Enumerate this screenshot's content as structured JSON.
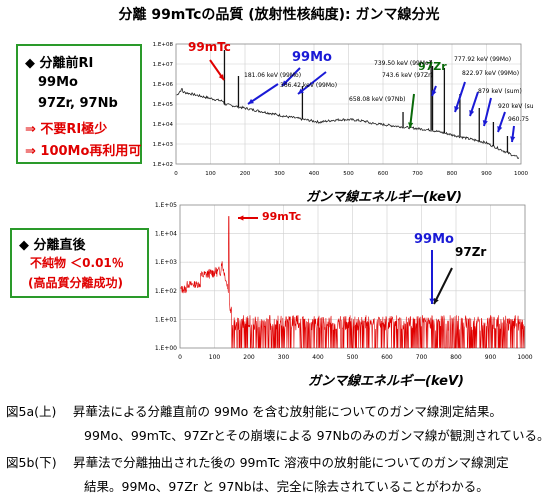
{
  "title": "分離 99mTcの品質 (放射性核純度): ガンマ線分光",
  "box_top": {
    "lines": [
      "◆ 分離前RI",
      "99Mo",
      "97Zr, 97Nb",
      "⇒ 不要RI極少",
      "⇒ 100Mo再利用可"
    ]
  },
  "box_bottom": {
    "lines": [
      "◆ 分離直後",
      "不純物 ＜0.01％",
      "(高品質分離成功)"
    ]
  },
  "chart_data": [
    {
      "type": "line",
      "title": "",
      "xlabel": "ガンマ線エネルギー(keV)",
      "ylabel": "",
      "xlim": [
        0,
        1000
      ],
      "x_ticks": [
        "0",
        "100",
        "200",
        "300",
        "400",
        "500",
        "600",
        "700",
        "800",
        "900",
        "1000"
      ],
      "y_ticks": [
        "1.E+02",
        "1.E+03",
        "1.E+04",
        "1.E+05",
        "1.E+06",
        "1.E+07",
        "1.E+08"
      ],
      "ylim_log10": [
        2,
        8
      ],
      "log_y": true,
      "peaks": [
        {
          "energy": 140.5,
          "label": "99mTc"
        },
        {
          "energy": 181.06,
          "label": "181.06 keV (99Mo)"
        },
        {
          "energy": 366.42,
          "label": "366.42 keV (99Mo)"
        },
        {
          "energy": 658.08,
          "label": "658.08 keV (97Nb)"
        },
        {
          "energy": 739.5,
          "label": "739.50 keV (99Mo)"
        },
        {
          "energy": 743.6,
          "label": "743.6 keV (97Zr)"
        },
        {
          "energy": 777.92,
          "label": "777.92 keV (99Mo)"
        },
        {
          "energy": 822.97,
          "label": "822.97 keV (99Mo)"
        },
        {
          "energy": 879,
          "label": "879 keV (sum)"
        },
        {
          "energy": 920,
          "label": "920 keV (sum)"
        },
        {
          "energy": 960.75,
          "label": "960.75"
        }
      ],
      "annotations": [
        "99mTc",
        "99Mo",
        "97Zr"
      ]
    },
    {
      "type": "line",
      "title": "",
      "xlabel": "ガンマ線エネルギー(keV)",
      "ylabel": "",
      "xlim": [
        0,
        1000
      ],
      "x_ticks": [
        "0",
        "100",
        "200",
        "300",
        "400",
        "500",
        "600",
        "700",
        "800",
        "900",
        "1000"
      ],
      "y_ticks": [
        "1.E+00",
        "1.E+01",
        "1.E+02",
        "1.E+03",
        "1.E+04",
        "1.E+05"
      ],
      "ylim_log10": [
        0,
        5
      ],
      "log_y": true,
      "peaks": [
        {
          "energy": 140.5,
          "label": "99mTc"
        }
      ],
      "annotations": [
        "99mTc",
        "99Mo",
        "97Zr"
      ]
    }
  ],
  "chart_labels": {
    "top": {
      "tc": "99mTc",
      "mo": "99Mo",
      "zr": "97Zr",
      "p181": "181.06 keV (99Mo)",
      "p366": "366.42 keV (99Mo)",
      "p658": "658.08 keV (97Nb)",
      "p739": "739.50 keV (99Mo)",
      "p743": "743.6 keV (97Zr)",
      "p777": "777.92 keV (99Mo)",
      "p822": "822.97 keV (99Mo)",
      "p879": "879 keV (sum)",
      "p920": "920 keV (su",
      "p960": "960.75"
    },
    "bottom": {
      "tc": "99mTc",
      "mo": "99Mo",
      "zr": "97Zr"
    }
  },
  "captions": [
    "図5a(上)　 昇華法による分離直前の 99Mo を含む放射能についてのガンマ線測定結果。",
    "99Mo、99mTc、97Zrとその崩壊による 97Nbのみのガンマ線が観測されている。",
    "図5b(下)　 昇華法で分離抽出された後の 99mTc 溶液中の放射能についてのガンマ線測定",
    "結果。99Mo、97Zr と 97Nbは、完全に除去されていることがわかる。"
  ],
  "colors": {
    "box_border": "#2a9a2a",
    "red": "#e00000",
    "blue": "#1a1ad6",
    "green": "#0a6a0a"
  }
}
